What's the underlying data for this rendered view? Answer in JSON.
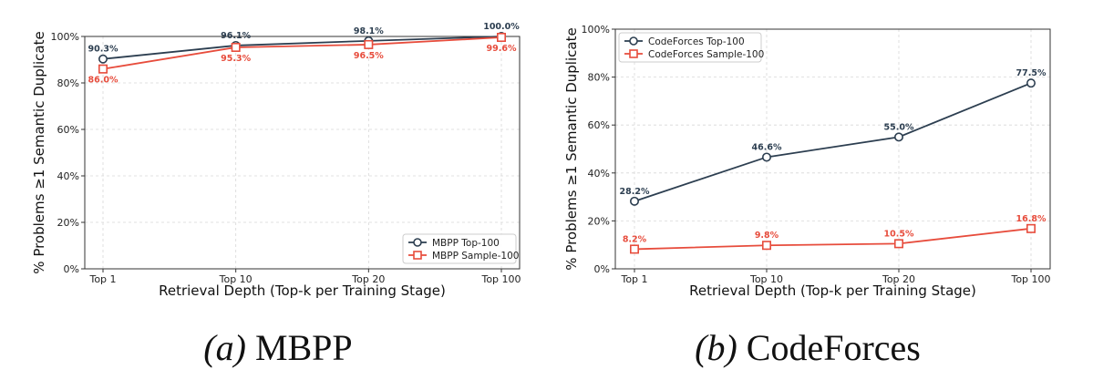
{
  "chart_data": [
    {
      "type": "line",
      "caption_label": "(a)",
      "caption_name": "MBPP",
      "categories": [
        "Top 1",
        "Top 10",
        "Top 20",
        "Top 100"
      ],
      "series": [
        {
          "name": "MBPP Top-100",
          "values": [
            90.3,
            96.1,
            98.1,
            100.0
          ],
          "labels": [
            "90.3%",
            "96.1%",
            "98.1%",
            "100.0%"
          ],
          "color": "#2c3e50",
          "marker": "circle"
        },
        {
          "name": "MBPP Sample-100",
          "values": [
            86.0,
            95.3,
            96.5,
            99.6
          ],
          "labels": [
            "86.0%",
            "95.3%",
            "96.5%",
            "99.6%"
          ],
          "color": "#e74c3c",
          "marker": "square"
        }
      ],
      "xlabel": "Retrieval Depth (Top-k per Training Stage)",
      "ylabel": "% Problems ≥1 Semantic Duplicate",
      "ylim": [
        0,
        100
      ],
      "yticks": [
        "0%",
        "20%",
        "40%",
        "60%",
        "80%",
        "100%"
      ],
      "legend": "bottom-right",
      "grid": true
    },
    {
      "type": "line",
      "caption_label": "(b)",
      "caption_name": "CodeForces",
      "categories": [
        "Top 1",
        "Top 10",
        "Top 20",
        "Top 100"
      ],
      "series": [
        {
          "name": "CodeForces Top-100",
          "values": [
            28.2,
            46.6,
            55.0,
            77.5
          ],
          "labels": [
            "28.2%",
            "46.6%",
            "55.0%",
            "77.5%"
          ],
          "color": "#2c3e50",
          "marker": "circle"
        },
        {
          "name": "CodeForces Sample-100",
          "values": [
            8.2,
            9.8,
            10.5,
            16.8
          ],
          "labels": [
            "8.2%",
            "9.8%",
            "10.5%",
            "16.8%"
          ],
          "color": "#e74c3c",
          "marker": "square"
        }
      ],
      "xlabel": "Retrieval Depth (Top-k per Training Stage)",
      "ylabel": "% Problems ≥1 Semantic Duplicate",
      "ylim": [
        0,
        100
      ],
      "yticks": [
        "0%",
        "20%",
        "40%",
        "60%",
        "80%",
        "100%"
      ],
      "legend": "top-left",
      "grid": true
    }
  ]
}
